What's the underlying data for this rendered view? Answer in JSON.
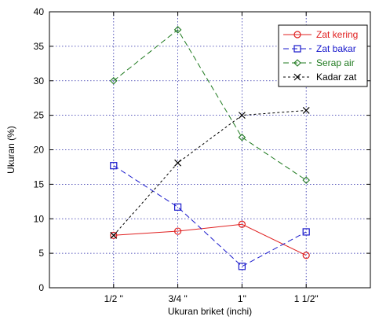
{
  "chart_data": {
    "type": "line",
    "title": "",
    "xlabel": "Ukuran briket (inchi)",
    "ylabel": "Ukuran (%)",
    "categories": [
      "1/2 \"",
      "3/4 \"",
      "1\"",
      "1 1/2\""
    ],
    "ylim": [
      0,
      40
    ],
    "yticks": [
      0,
      5,
      10,
      15,
      20,
      25,
      30,
      35,
      40
    ],
    "grid": true,
    "legend_position": "top-right",
    "series": [
      {
        "name": "Zat kering",
        "color": "#e02020",
        "line": "solid",
        "marker": "circle",
        "values": [
          7.6,
          8.2,
          9.2,
          4.7
        ]
      },
      {
        "name": "Zat bakar",
        "color": "#1a1acc",
        "line": "dashed",
        "marker": "square",
        "values": [
          17.7,
          11.7,
          3.1,
          8.1
        ]
      },
      {
        "name": "Serap air",
        "color": "#1f7a1f",
        "line": "dashed",
        "marker": "diamond",
        "values": [
          30.0,
          37.4,
          21.8,
          15.6
        ]
      },
      {
        "name": "Kadar zat",
        "color": "#000000",
        "line": "dotted",
        "marker": "x",
        "values": [
          7.6,
          18.1,
          25.0,
          25.7
        ]
      }
    ]
  }
}
